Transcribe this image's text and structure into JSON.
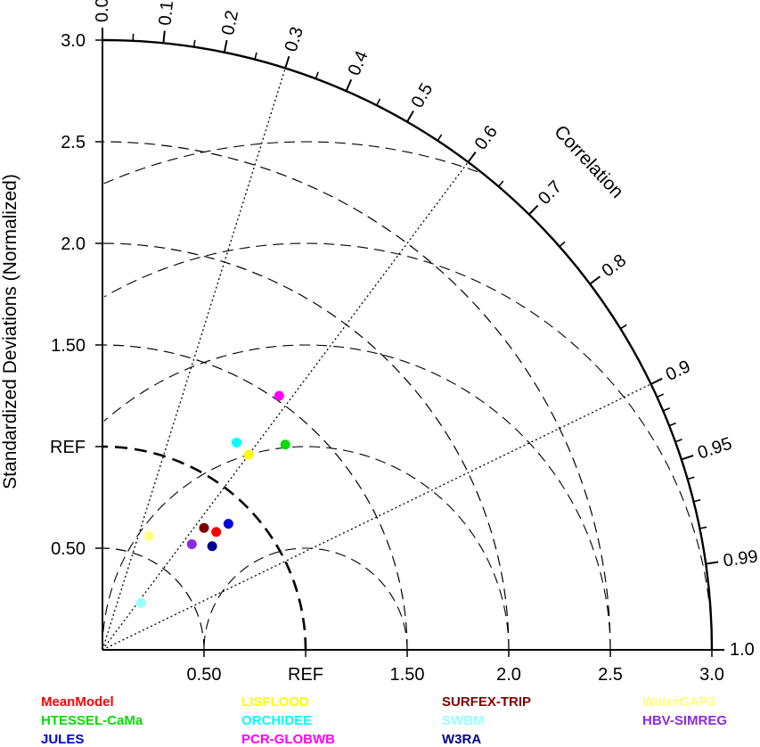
{
  "chart_data": {
    "type": "scatter",
    "subtype": "taylor-diagram",
    "ylabel": "Standardized Deviations (Normalized)",
    "correlation_label": "Correlation",
    "ref_label": "REF",
    "std_max": 3.0,
    "ref_std": 1.0,
    "x_ticks": [
      {
        "value": 0.5,
        "label": "0.50"
      },
      {
        "value": 1.0,
        "label": "REF"
      },
      {
        "value": 1.5,
        "label": "1.50"
      },
      {
        "value": 2.0,
        "label": "2.0"
      },
      {
        "value": 2.5,
        "label": "2.5"
      },
      {
        "value": 3.0,
        "label": "3.0"
      }
    ],
    "y_ticks": [
      {
        "value": 0.5,
        "label": "0.50"
      },
      {
        "value": 1.0,
        "label": "REF"
      },
      {
        "value": 1.5,
        "label": "1.50"
      },
      {
        "value": 2.0,
        "label": "2.0"
      },
      {
        "value": 2.5,
        "label": "2.5"
      },
      {
        "value": 3.0,
        "label": "3.0"
      }
    ],
    "correlation_ticks": [
      {
        "value": 0.0,
        "label": "0.0"
      },
      {
        "value": 0.1,
        "label": "0.1"
      },
      {
        "value": 0.2,
        "label": "0.2"
      },
      {
        "value": 0.3,
        "label": "0.3"
      },
      {
        "value": 0.4,
        "label": "0.4"
      },
      {
        "value": 0.5,
        "label": "0.5"
      },
      {
        "value": 0.6,
        "label": "0.6"
      },
      {
        "value": 0.7,
        "label": "0.7"
      },
      {
        "value": 0.8,
        "label": "0.8"
      },
      {
        "value": 0.9,
        "label": "0.9"
      },
      {
        "value": 0.95,
        "label": "0.95"
      },
      {
        "value": 0.99,
        "label": "0.99"
      },
      {
        "value": 1.0,
        "label": "1.0"
      }
    ],
    "correlation_minor_ticks": [
      0.05,
      0.15,
      0.25,
      0.35,
      0.45,
      0.55,
      0.65,
      0.75,
      0.85,
      0.91,
      0.92,
      0.93,
      0.94,
      0.96,
      0.97,
      0.98
    ],
    "correlation_rays": [
      0.3,
      0.6,
      0.9
    ],
    "std_arcs": [
      0.5,
      1.0,
      1.5,
      2.0,
      2.5
    ],
    "rms_arcs": [
      0.5,
      1.0,
      1.5,
      2.0,
      2.5
    ],
    "series": [
      {
        "name": "MeanModel",
        "color": "#ff0000",
        "x": 0.56,
        "y": 0.58
      },
      {
        "name": "HTESSEL-CaMa",
        "color": "#00dd00",
        "x": 0.9,
        "y": 1.01
      },
      {
        "name": "JULES",
        "color": "#0000dd",
        "x": 0.62,
        "y": 0.62
      },
      {
        "name": "LISFLOOD",
        "color": "#ffff00",
        "x": 0.72,
        "y": 0.96
      },
      {
        "name": "ORCHIDEE",
        "color": "#00ffff",
        "x": 0.66,
        "y": 1.02
      },
      {
        "name": "PCR-GLOBWB",
        "color": "#ff00ff",
        "x": 0.87,
        "y": 1.25
      },
      {
        "name": "SURFEX-TRIP",
        "color": "#800000",
        "x": 0.5,
        "y": 0.6
      },
      {
        "name": "SWBM",
        "color": "#99ffff",
        "x": 0.19,
        "y": 0.23
      },
      {
        "name": "W3RA",
        "color": "#00008b",
        "x": 0.54,
        "y": 0.51
      },
      {
        "name": "WaterGAP3",
        "color": "#ffff80",
        "x": 0.23,
        "y": 0.56
      },
      {
        "name": "HBV-SIMREG",
        "color": "#8a2be2",
        "x": 0.44,
        "y": 0.52
      }
    ]
  }
}
